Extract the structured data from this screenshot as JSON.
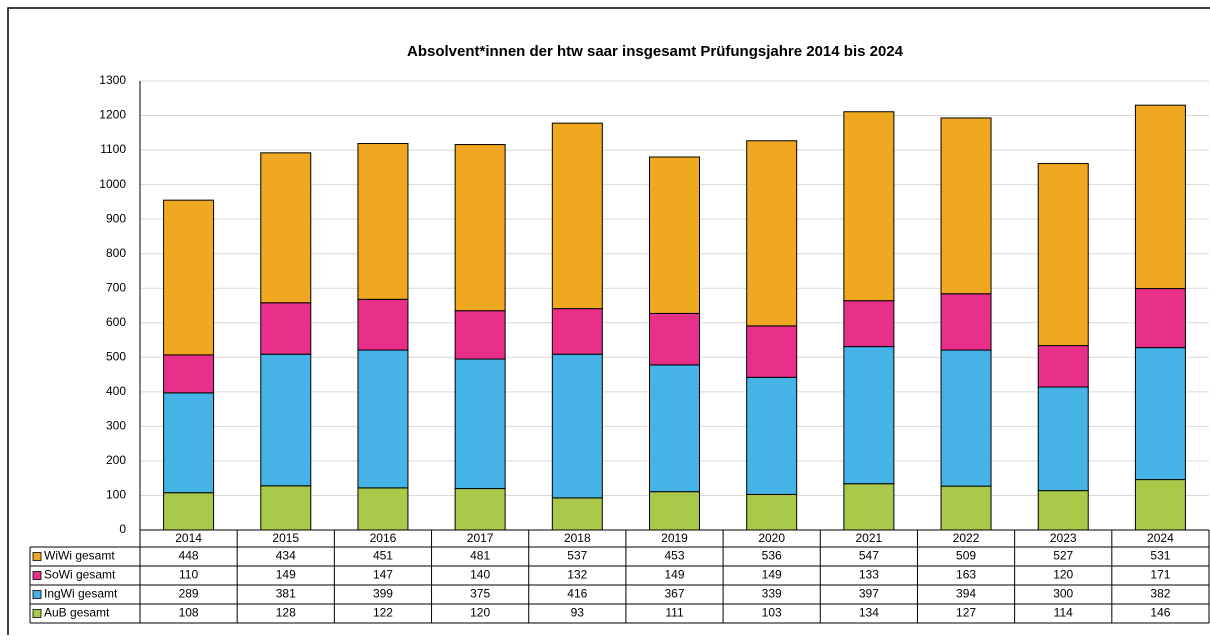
{
  "chart_data": {
    "type": "bar",
    "stacked": true,
    "title": "Absolvent*innen der htw saar insgesamt Prüfungsjahre 2014 bis 2024",
    "categories": [
      "2014",
      "2015",
      "2016",
      "2017",
      "2018",
      "2019",
      "2020",
      "2021",
      "2022",
      "2023",
      "2024"
    ],
    "series": [
      {
        "name": "AuB gesamt",
        "color": "#a9c94a",
        "values": [
          108,
          128,
          122,
          120,
          93,
          111,
          103,
          134,
          127,
          114,
          146
        ]
      },
      {
        "name": "IngWi gesamt",
        "color": "#45b3e6",
        "values": [
          289,
          381,
          399,
          375,
          416,
          367,
          339,
          397,
          394,
          300,
          382
        ]
      },
      {
        "name": "SoWi gesamt",
        "color": "#e8308a",
        "values": [
          110,
          149,
          147,
          140,
          132,
          149,
          149,
          133,
          163,
          120,
          171
        ]
      },
      {
        "name": "WiWi gesamt",
        "color": "#f0a820",
        "values": [
          448,
          434,
          451,
          481,
          537,
          453,
          536,
          547,
          509,
          527,
          531
        ]
      }
    ],
    "ylim": [
      0,
      1300
    ],
    "yticks": [
      0,
      100,
      200,
      300,
      400,
      500,
      600,
      700,
      800,
      900,
      1000,
      1100,
      1200,
      1300
    ],
    "grid": true
  }
}
